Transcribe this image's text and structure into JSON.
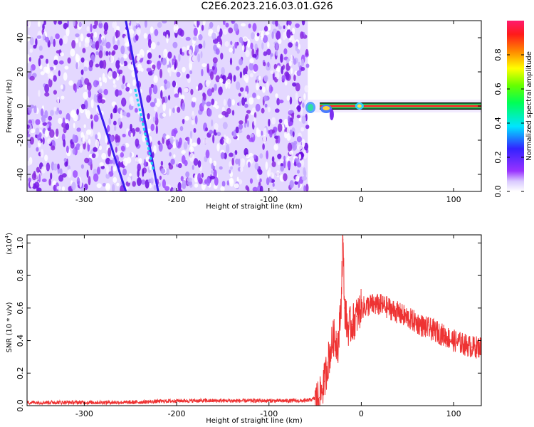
{
  "title": "C2E6.2023.216.03.01.G26",
  "chart_data": [
    {
      "type": "heatmap",
      "title": "C2E6.2023.216.03.01.G26",
      "xlabel": "Height of straight line (km)",
      "ylabel": "Frequency (Hz)",
      "xlim": [
        -362,
        130
      ],
      "ylim": [
        -50,
        50
      ],
      "xticks": [
        -300,
        -200,
        -100,
        0,
        100
      ],
      "yticks": [
        -40,
        -20,
        0,
        20,
        40
      ],
      "noise_region_x": [
        -362,
        -58
      ],
      "carrier_x": [
        -58,
        130
      ],
      "carrier_freq": 0,
      "streaks": [
        {
          "x": [
            -255,
            -220
          ],
          "y": [
            50,
            -50
          ]
        },
        {
          "x": [
            -285,
            -255
          ],
          "y": [
            0,
            -50
          ]
        }
      ],
      "colorbar": {
        "label": "Normalized spectral amplitude",
        "range": [
          0,
          1
        ],
        "ticks": [
          0.0,
          0.2,
          0.4,
          0.6,
          0.8
        ]
      }
    },
    {
      "type": "line",
      "xlabel": "Height of straight line (km)",
      "ylabel": "SNR (10 * v/v)",
      "y_multiplier": "(x10",
      "y_multiplier_exp": "4",
      "xlim": [
        -362,
        130
      ],
      "ylim": [
        0,
        1.05
      ],
      "xticks": [
        -300,
        -200,
        -100,
        0,
        100
      ],
      "yticks": [
        0.0,
        0.2,
        0.4,
        0.6,
        0.8,
        1.0
      ],
      "series": [
        {
          "color": "#ee3333",
          "x": [
            -362,
            -300,
            -250,
            -200,
            -150,
            -100,
            -60,
            -45,
            -40,
            -35,
            -30,
            -25,
            -22,
            -20,
            -18,
            -15,
            -10,
            -5,
            0,
            10,
            20,
            30,
            40,
            50,
            60,
            70,
            80,
            90,
            100,
            110,
            120,
            130
          ],
          "y": [
            0.02,
            0.02,
            0.02,
            0.03,
            0.03,
            0.03,
            0.03,
            0.05,
            0.15,
            0.3,
            0.42,
            0.38,
            0.6,
            1.02,
            0.6,
            0.48,
            0.5,
            0.55,
            0.6,
            0.62,
            0.62,
            0.6,
            0.57,
            0.54,
            0.51,
            0.48,
            0.46,
            0.43,
            0.4,
            0.38,
            0.36,
            0.36
          ]
        }
      ]
    }
  ]
}
